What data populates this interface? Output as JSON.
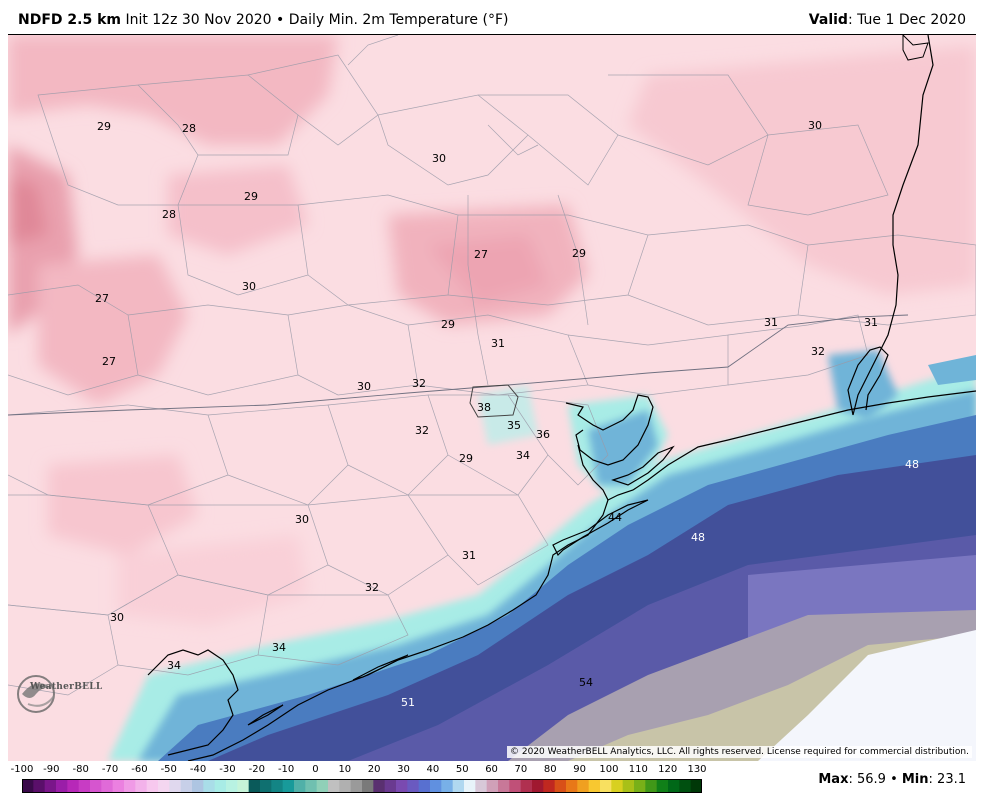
{
  "header": {
    "product": "NDFD 2.5 km",
    "init": "Init 12z 30 Nov 2020",
    "separator": "•",
    "field": "Daily Min. 2m Temperature (°F)",
    "valid_label": "Valid",
    "valid_value": ": Tue 1 Dec 2020"
  },
  "copyright": "© 2020 WeatherBELL Analytics, LLC. All rights reserved. License required for commercial distribution.",
  "logo_text": "WeatherBELL",
  "logo_icon": "weatherbell-logo-icon",
  "stats": {
    "max_label": "Max",
    "max_value": ": 56.9",
    "separator": " • ",
    "min_label": "Min",
    "min_value": ": 23.1"
  },
  "colorbar": {
    "labels": [
      "-100",
      "-90",
      "-80",
      "-70",
      "-60",
      "-50",
      "-40",
      "-30",
      "-20",
      "-10",
      "0",
      "10",
      "20",
      "30",
      "40",
      "50",
      "60",
      "70",
      "80",
      "90",
      "100",
      "110",
      "120",
      "130"
    ],
    "colors": [
      "#3a0a4a",
      "#5a0f6a",
      "#7a168a",
      "#9a1ea8",
      "#b728b8",
      "#c83cc4",
      "#d655cf",
      "#e06ad8",
      "#eb80e0",
      "#f09ae6",
      "#f3b2ea",
      "#f7c8ee",
      "#f4d6f0",
      "#e0d8ee",
      "#c7cfe8",
      "#aec5e2",
      "#a9dde8",
      "#a8ece6",
      "#b8f2e2",
      "#c6f4d8",
      "#0a5a5a",
      "#0f7070",
      "#138585",
      "#189a9a",
      "#50b0a8",
      "#70c0b0",
      "#90d0b8",
      "#c0c0c0",
      "#b0b0b0",
      "#9a9a9a",
      "#7a7a7a",
      "#5a3070",
      "#6a3a90",
      "#7a4ab0",
      "#6a5ac0",
      "#5870d0",
      "#6090e0",
      "#78b0e8",
      "#b0d8f0",
      "#e8f4fa",
      "#d8c8d8",
      "#d0a0b8",
      "#c87898",
      "#c05078",
      "#b03050",
      "#a01830",
      "#c02820",
      "#d85018",
      "#e87818",
      "#f0a020",
      "#f8c830",
      "#f8e060",
      "#d8d020",
      "#a8c018",
      "#78b018",
      "#409818",
      "#108018",
      "#006818",
      "#005010",
      "#003808"
    ]
  },
  "map": {
    "temperature_labels": [
      {
        "text": "29",
        "color": "#000000"
      },
      {
        "text": "28",
        "color": "#000000"
      },
      {
        "text": "30",
        "color": "#000000"
      },
      {
        "text": "30",
        "color": "#000000"
      },
      {
        "text": "29",
        "color": "#000000"
      },
      {
        "text": "28",
        "color": "#000000"
      },
      {
        "text": "27",
        "color": "#000000"
      },
      {
        "text": "29",
        "color": "#000000"
      },
      {
        "text": "27",
        "color": "#000000"
      },
      {
        "text": "30",
        "color": "#000000"
      },
      {
        "text": "29",
        "color": "#000000"
      },
      {
        "text": "31",
        "color": "#000000"
      },
      {
        "text": "31",
        "color": "#000000"
      },
      {
        "text": "31",
        "color": "#000000"
      },
      {
        "text": "32",
        "color": "#000000"
      },
      {
        "text": "27",
        "color": "#000000"
      },
      {
        "text": "30",
        "color": "#000000"
      },
      {
        "text": "32",
        "color": "#000000"
      },
      {
        "text": "38",
        "color": "#000000"
      },
      {
        "text": "35",
        "color": "#000000"
      },
      {
        "text": "36",
        "color": "#000000"
      },
      {
        "text": "32",
        "color": "#000000"
      },
      {
        "text": "34",
        "color": "#000000"
      },
      {
        "text": "29",
        "color": "#000000"
      },
      {
        "text": "48",
        "color": "#ffffff"
      },
      {
        "text": "44",
        "color": "#000000"
      },
      {
        "text": "48",
        "color": "#ffffff"
      },
      {
        "text": "30",
        "color": "#000000"
      },
      {
        "text": "31",
        "color": "#000000"
      },
      {
        "text": "32",
        "color": "#000000"
      },
      {
        "text": "30",
        "color": "#000000"
      },
      {
        "text": "34",
        "color": "#000000"
      },
      {
        "text": "34",
        "color": "#000000"
      },
      {
        "text": "54",
        "color": "#000000"
      },
      {
        "text": "51",
        "color": "#ffffff"
      }
    ],
    "land_color": "#fbdde2",
    "cold_color": "#f3b8c2",
    "coast_color": "#a8ece6",
    "gulf_near_color": "#4a7cc0",
    "gulf_mid_color": "#5a5aa8",
    "gulf_far_color": "#7a76c0",
    "warm_gray_color": "#a8a0b0",
    "warm_olive_color": "#c8c4a8",
    "no_data_color": "#f4f6fc"
  }
}
